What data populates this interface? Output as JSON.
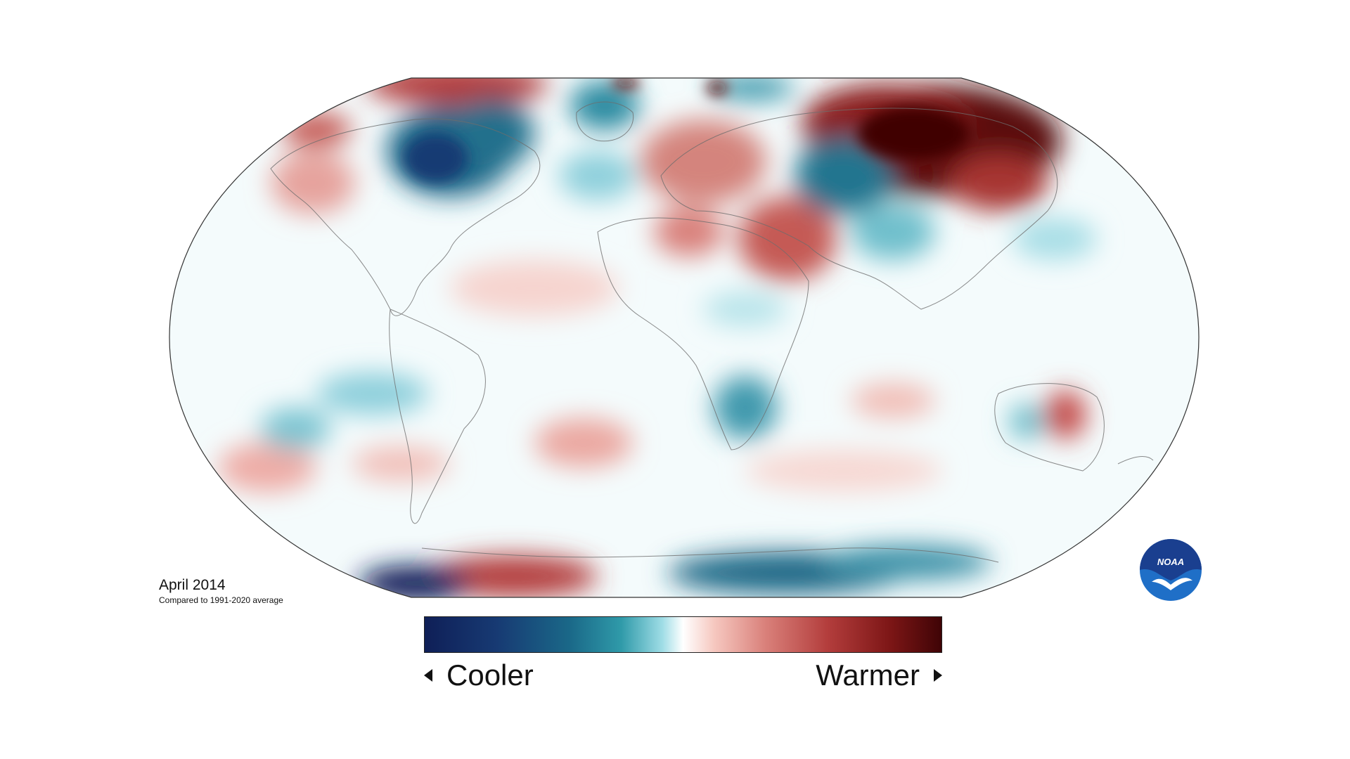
{
  "caption": {
    "title": "April 2014",
    "subtitle": "Compared to 1991-2020 average"
  },
  "legend": {
    "cooler_label": "Cooler",
    "warmer_label": "Warmer",
    "cool_color": "#0f1f57",
    "neutral_color": "#ffffff",
    "warm_color": "#3f0406"
  },
  "logo": {
    "text": "NOAA",
    "color": "#1f6fc7"
  }
}
